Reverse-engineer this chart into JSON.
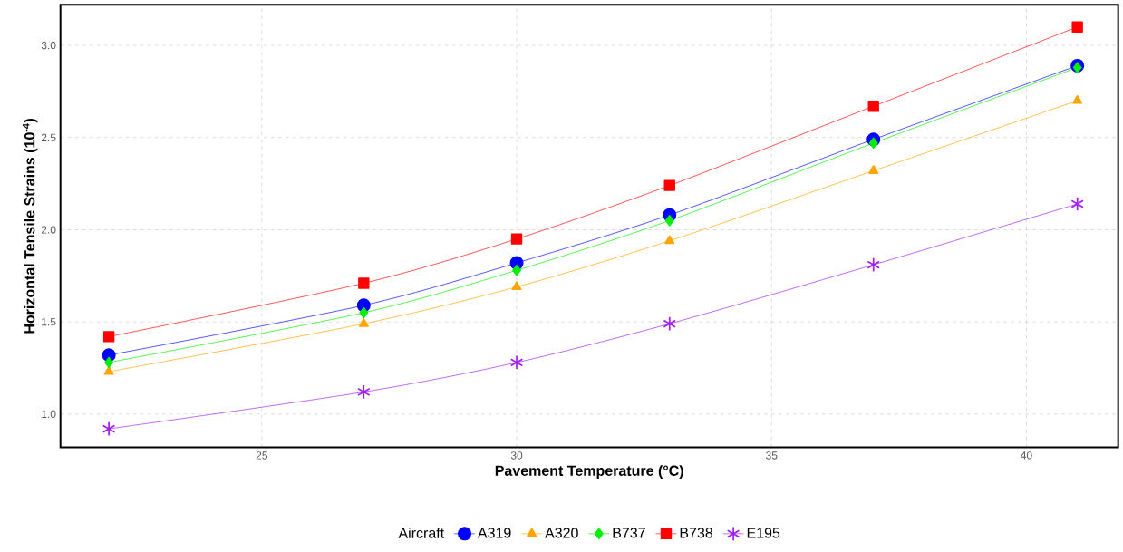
{
  "chart_data": {
    "type": "line",
    "xlabel": "Pavement Temperature (°C)",
    "ylabel": "Horizontal Tensile Strains (10$^{-4}$)",
    "legend_title": "Aircraft",
    "x": [
      22,
      27,
      30,
      33,
      37,
      41
    ],
    "series": [
      {
        "name": "A319",
        "color": "#0000ff",
        "marker": "circle",
        "values": [
          1.32,
          1.59,
          1.82,
          2.08,
          2.49,
          2.89
        ]
      },
      {
        "name": "A320",
        "color": "#ffa500",
        "marker": "triangle",
        "values": [
          1.23,
          1.49,
          1.69,
          1.94,
          2.32,
          2.7
        ]
      },
      {
        "name": "B737",
        "color": "#00ee00",
        "marker": "diamond",
        "values": [
          1.28,
          1.55,
          1.78,
          2.05,
          2.47,
          2.88
        ]
      },
      {
        "name": "B738",
        "color": "#ff0000",
        "marker": "square",
        "values": [
          1.42,
          1.71,
          1.95,
          2.24,
          2.67,
          3.1
        ]
      },
      {
        "name": "E195",
        "color": "#a020f0",
        "marker": "cross",
        "values": [
          0.92,
          1.12,
          1.28,
          1.49,
          1.81,
          2.14
        ]
      }
    ],
    "xlim": [
      21.05,
      41.8
    ],
    "ylim": [
      0.82,
      3.22
    ],
    "xticks": [
      25,
      30,
      35,
      40
    ],
    "yticks": [
      {
        "value": 1.0,
        "label": "1.0"
      },
      {
        "value": 1.5,
        "label": "1.5"
      },
      {
        "value": 2.0,
        "label": "2.0"
      },
      {
        "value": 2.5,
        "label": "2.5"
      },
      {
        "value": 3.0,
        "label": "3.0"
      }
    ],
    "grid": true,
    "legend": "bottom",
    "line_style": "solid"
  }
}
